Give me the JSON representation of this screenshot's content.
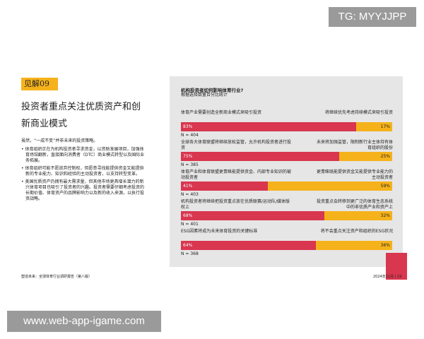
{
  "watermarks": {
    "top": "TG: MYYJJPP",
    "bottom": "www.web-app-igame.com"
  },
  "left_panel": {
    "tag": "见解09",
    "heading": "投资者重点关注优质资产和创新商业模式",
    "intro": "虽然，“一成不变”并非未来的投资策略。",
    "bullets": [
      "体育组织正在为机构投资者寻求资金，以资助发展项目，加强体育场馆翻新，直接面向消费者（DTC）商业模式转型以及国际业务拓展。",
      "体育组织可能不愿放弃控制权，但愿意寻找能提供资金又能提供新的专业能力、知识和经验的主动投资者，以支持转型变革。",
      "美国优质资产仍拥有最大需求量，但其他市场更具增长潜力的新兴体育项目也吸引了投资者的兴趣。投资者需要仔细考虑投资的长期价值、体育资产的品牌影响力以及新的收入来源，以执行投资战略。"
    ]
  },
  "chart": {
    "title": "机构投资者如何影响体育行业?",
    "subtitle": "根据选择数量百分比统计",
    "colors": [
      "#d9364f",
      "#f5b21b"
    ],
    "rows": [
      {
        "left": "体育产业需要创造全新商业模式来吸引投资",
        "right": "将继续优先考虑持续模式来吸引投资",
        "values": [
          83,
          17
        ],
        "value_labels": [
          "83%",
          "17%"
        ],
        "n": "N = 404"
      },
      {
        "left": "全球各大体育联盟将继续放松监管，允许机构投资者进行投资",
        "right": "未来将加强监管，限制新行业主体持有体育组织的股份",
        "values": [
          75,
          25
        ],
        "value_labels": [
          "75%",
          "25%"
        ],
        "n": "N = 385"
      },
      {
        "left": "体育产业和体育联盟更青睐能提供资金、内部专业知识的被动投资者",
        "right": "更青睐既能提供资金又能提供专业能力的主动投资者",
        "values": [
          41,
          59
        ],
        "value_labels": [
          "41%",
          "59%"
        ],
        "n": "N = 403"
      },
      {
        "left": "机构投资者将继续把投资重点放在优质联赛/运动队/媒体版权上",
        "right": "投资重点会转移到更广泛的体育生态系统中的非优质产业和资产上",
        "values": [
          68,
          32
        ],
        "value_labels": [
          "68%",
          "32%"
        ],
        "n": "N = 401"
      },
      {
        "left": "ESG因素将成为未来体育投资的关键标准",
        "right": "将不会重点关注资产和组织的ESG状况",
        "values": [
          64,
          36
        ],
        "value_labels": [
          "64%",
          "36%"
        ],
        "n": "N = 368"
      }
    ]
  },
  "footer": {
    "left": "塑造未来：全球体育行业调研报告（第八版）",
    "right": "2024年11月 | 19"
  }
}
